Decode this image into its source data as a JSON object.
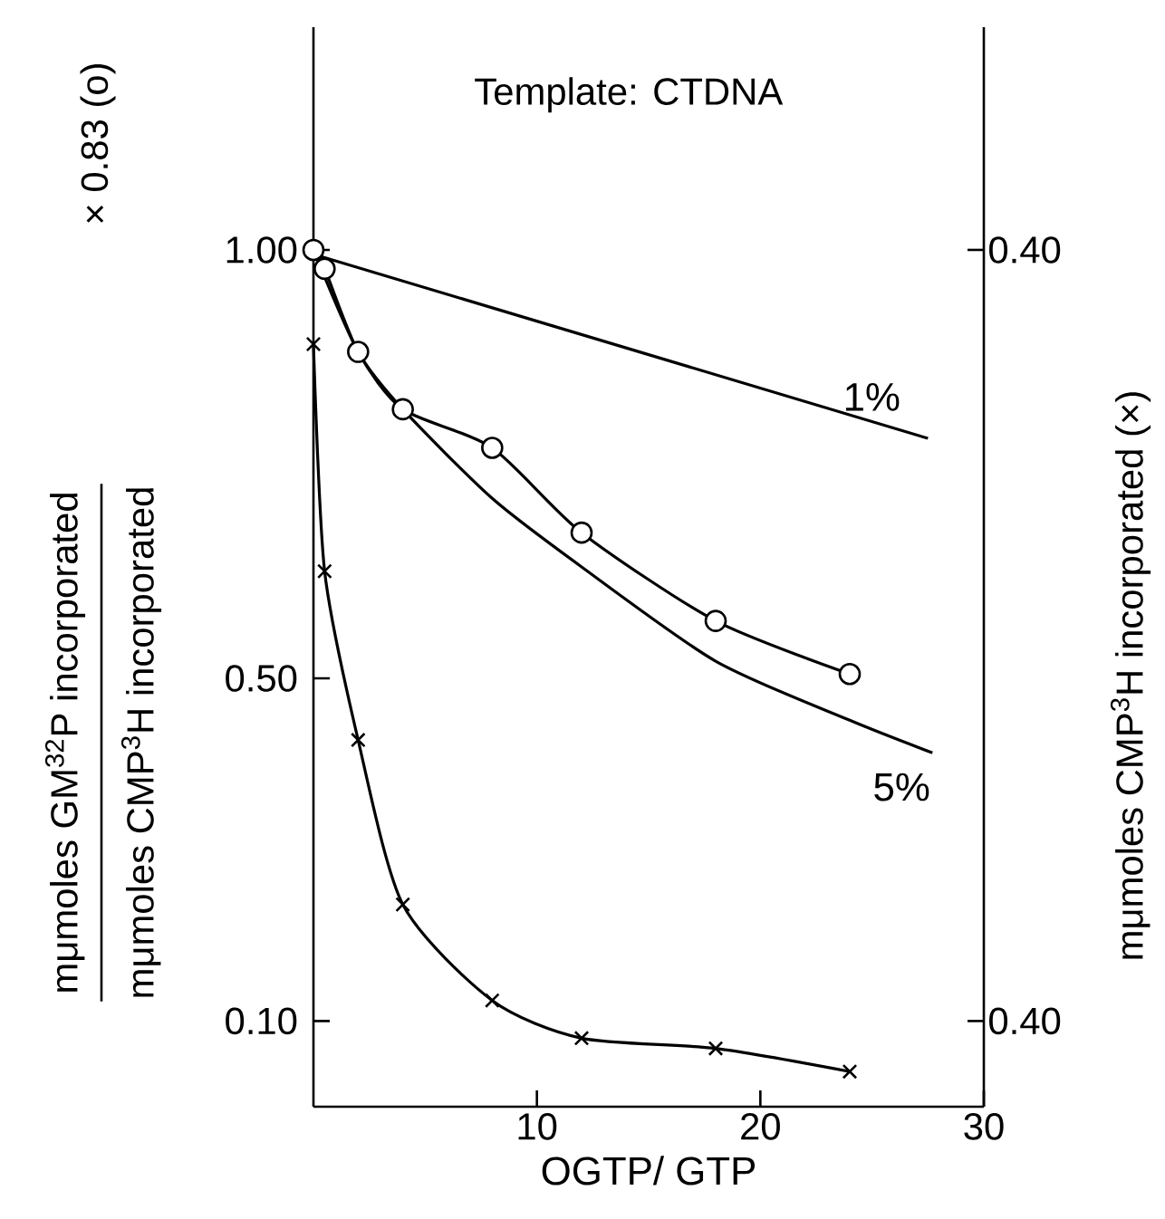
{
  "chart_data": {
    "type": "line",
    "title": "Template: CTDNA",
    "xlabel": "OGTP/ GTP",
    "ylabel": "mμmoles  GM$^{32}$P incorporated",
    "y2label": "mμmoles  CMP$^{3}$H incorporated (×)",
    "annotations": [
      "mμmoles  CMP$^{3}$H incorporated",
      "× 0.83 (o)",
      "0.40",
      "0.40"
    ],
    "xlim": [
      0,
      30
    ],
    "xticks": [
      10,
      20,
      30
    ],
    "ylim": [
      0,
      1.26
    ],
    "yticks": [
      {
        "value": 1.0,
        "label": "1.00"
      },
      {
        "value": 0.5,
        "label": "0.50"
      },
      {
        "value": 0.1,
        "label": "0.10"
      }
    ],
    "series": [
      {
        "color": "#000000",
        "marker": "circle",
        "line_style": "solid",
        "x": [
          0,
          0.5,
          2,
          4,
          8,
          12,
          18,
          24
        ],
        "values": [
          1.0,
          0.978,
          0.881,
          0.814,
          0.769,
          0.67,
          0.567,
          0.505
        ]
      },
      {
        "color": "#000000",
        "marker": "cross",
        "line_style": "solid",
        "x": [
          0,
          0.5,
          2,
          4,
          8,
          12,
          18,
          24
        ],
        "values": [
          0.89,
          0.625,
          0.428,
          0.236,
          0.124,
          0.08,
          0.068,
          0.041
        ]
      },
      {
        "name": "1%",
        "color": "#000000",
        "marker": "none",
        "line_style": "solid",
        "x": [
          0,
          27.5
        ],
        "values": [
          0.995,
          0.78
        ]
      },
      {
        "name": "5%",
        "color": "#000000",
        "marker": "none",
        "line_style": "solid",
        "x": [
          0,
          2,
          4,
          8,
          12,
          18,
          24,
          27.7
        ],
        "values": [
          1.0,
          0.881,
          0.814,
          0.71,
          0.63,
          0.52,
          0.451,
          0.413
        ]
      }
    ]
  }
}
